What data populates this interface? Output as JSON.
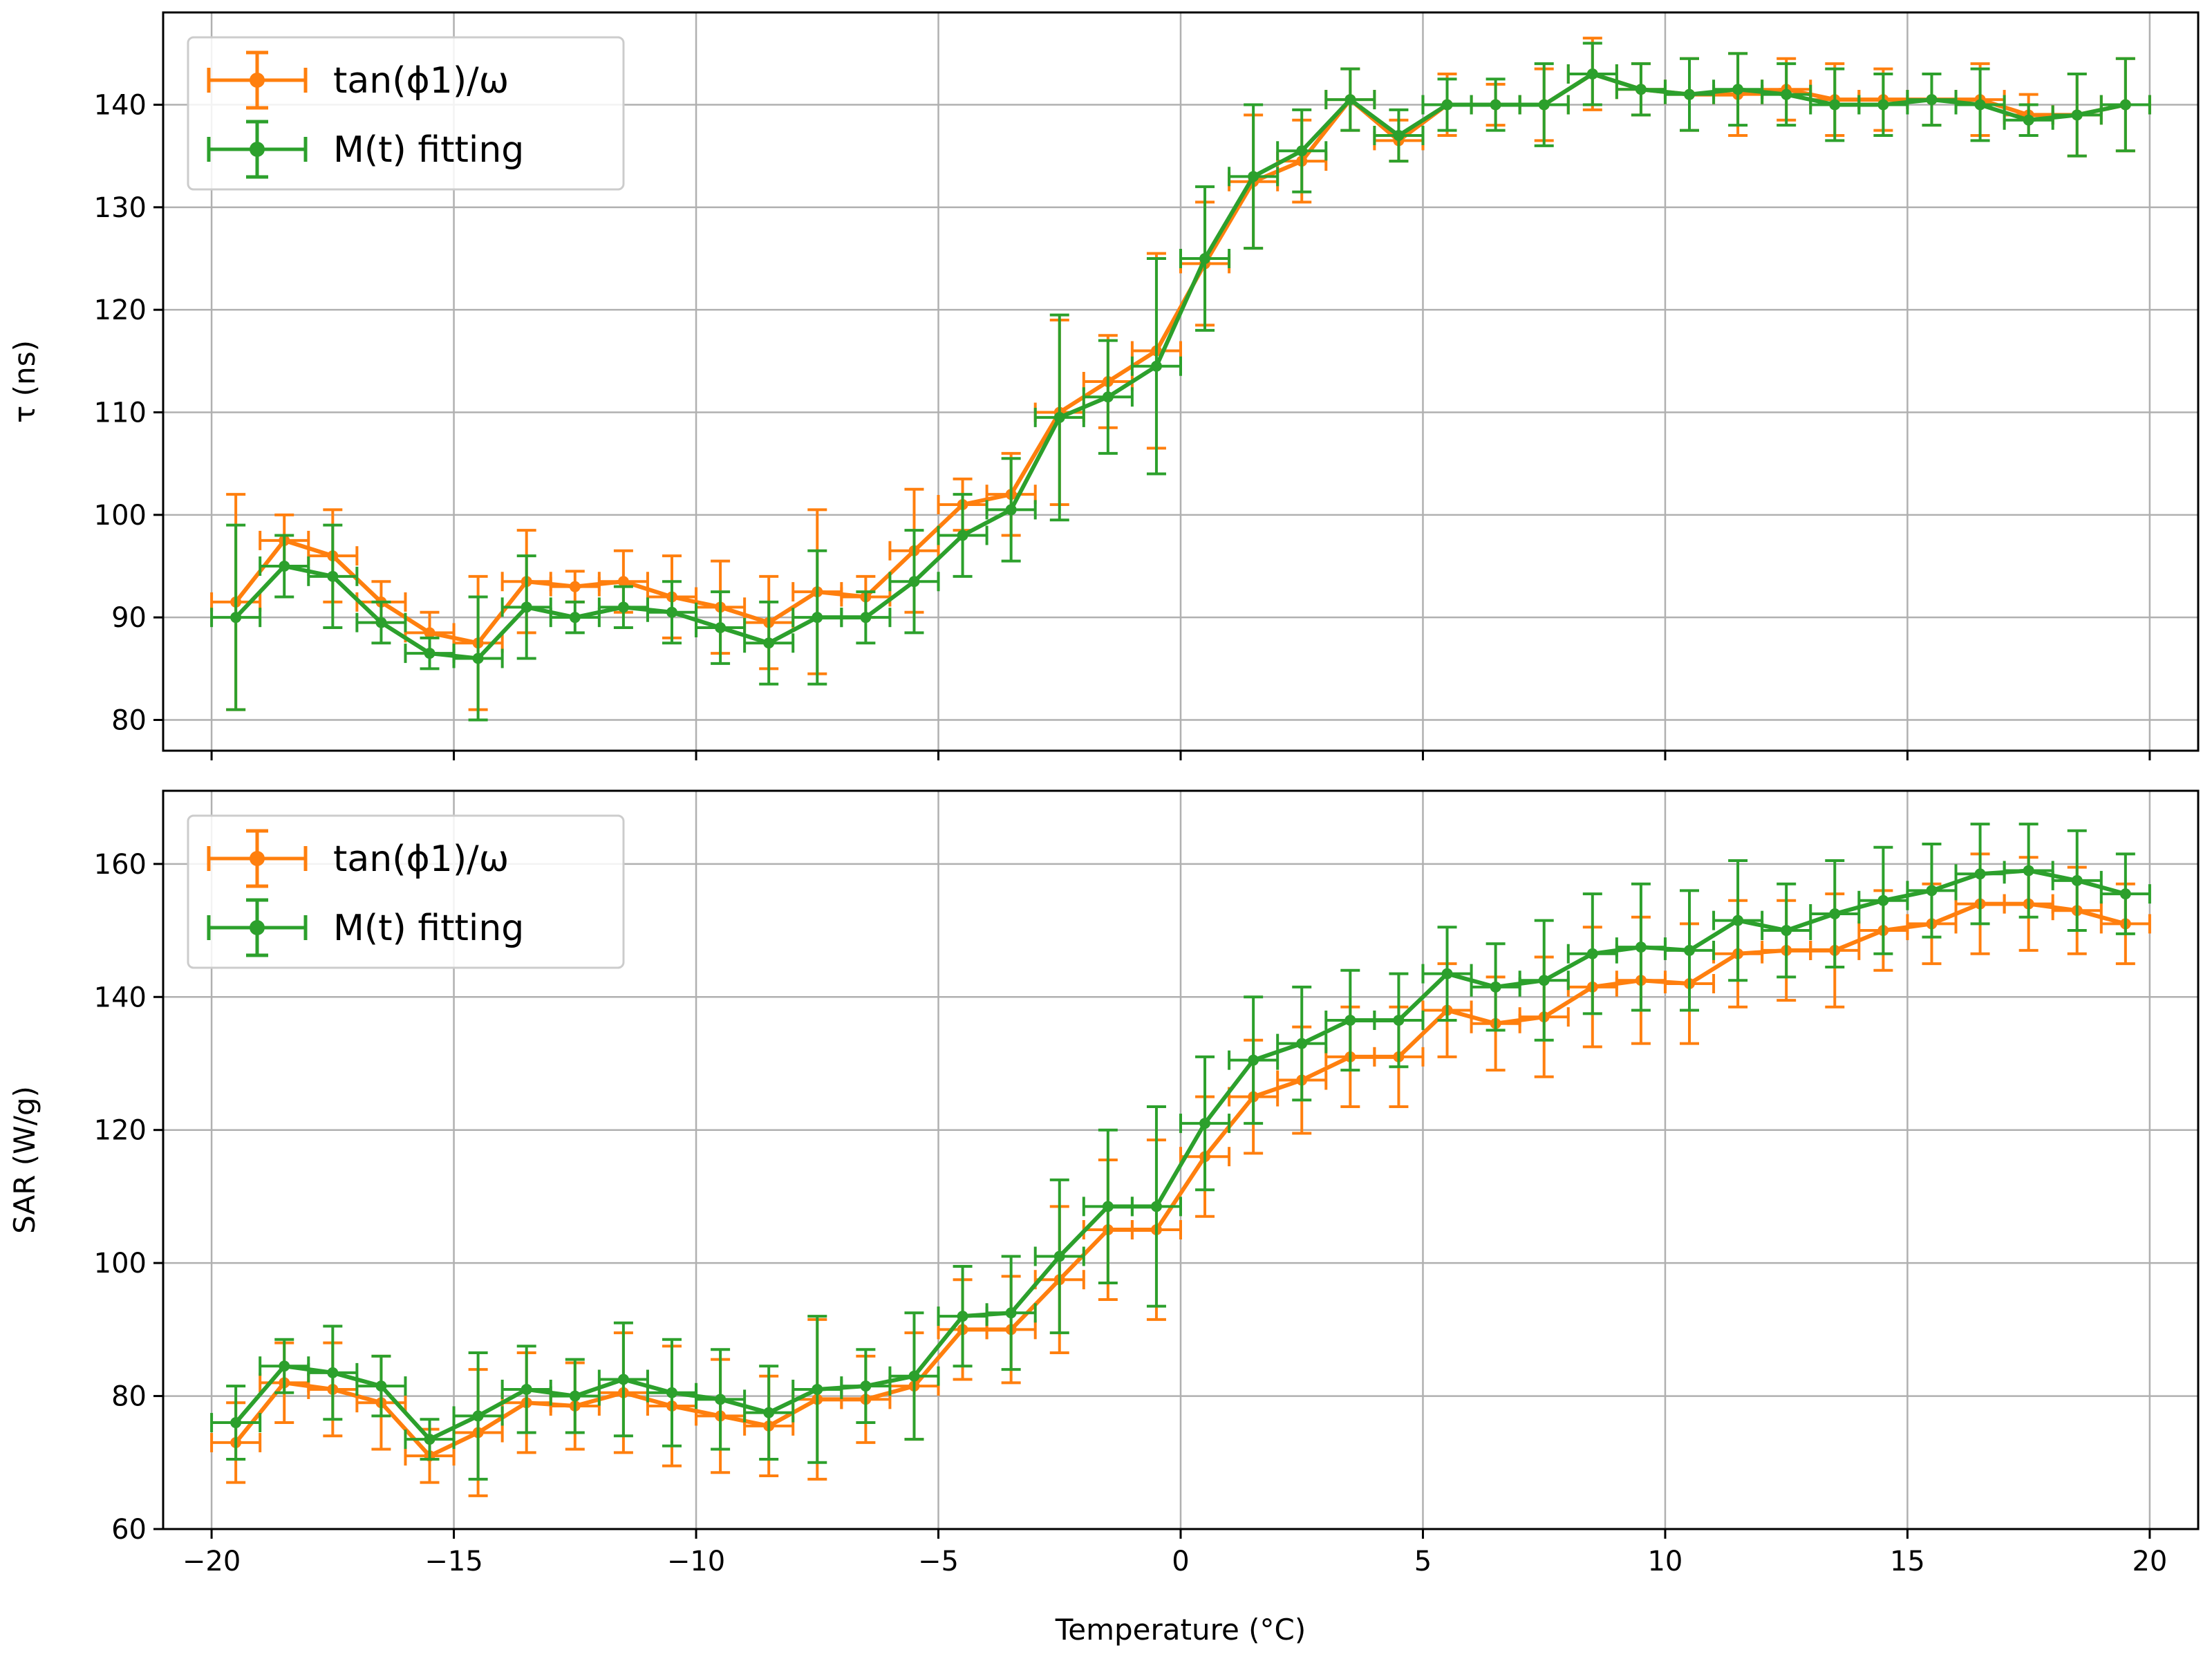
{
  "chart_data": [
    {
      "type": "line",
      "title": "",
      "xlabel": "",
      "ylabel": "τ (ns)",
      "xlim": [
        -21,
        21
      ],
      "ylim": [
        77,
        149
      ],
      "xticks": [
        -20,
        -15,
        -10,
        -5,
        0,
        5,
        10,
        15,
        20
      ],
      "yticks": [
        80,
        90,
        100,
        110,
        120,
        130,
        140
      ],
      "xtick_labels_visible": false,
      "grid": true,
      "legend": "upper-left",
      "x": [
        -19.5,
        -18.5,
        -17.5,
        -16.5,
        -15.5,
        -14.5,
        -13.5,
        -12.5,
        -11.5,
        -10.5,
        -9.5,
        -8.5,
        -7.5,
        -6.5,
        -5.5,
        -4.5,
        -3.5,
        -2.5,
        -1.5,
        -0.5,
        0.5,
        1.5,
        2.5,
        3.5,
        4.5,
        5.5,
        6.5,
        7.5,
        8.5,
        9.5,
        10.5,
        11.5,
        12.5,
        13.5,
        14.5,
        15.5,
        16.5,
        17.5,
        18.5,
        19.5
      ],
      "x_err": 0.5,
      "series": [
        {
          "name": "tan(ϕ1)/ω",
          "color": "#ff7f0e",
          "values": [
            91.5,
            97.5,
            96.0,
            91.5,
            88.5,
            87.5,
            93.5,
            93.0,
            93.5,
            92.0,
            91.0,
            89.5,
            92.5,
            92.0,
            96.5,
            101.0,
            102.0,
            110.0,
            113.0,
            116.0,
            124.5,
            132.5,
            134.5,
            140.5,
            136.5,
            140.0,
            140.0,
            140.0,
            143.0,
            141.5,
            141.0,
            141.0,
            141.5,
            140.5,
            140.5,
            140.5,
            140.5,
            139.0,
            139.0,
            140.0
          ],
          "errors": [
            10.5,
            2.5,
            4.5,
            2.0,
            2.0,
            6.5,
            5.0,
            1.5,
            3.0,
            4.0,
            4.5,
            4.5,
            8.0,
            2.0,
            6.0,
            2.5,
            4.0,
            9.0,
            4.5,
            9.5,
            6.0,
            6.5,
            4.0,
            3.0,
            2.0,
            3.0,
            2.0,
            3.5,
            3.5,
            2.5,
            3.5,
            4.0,
            3.0,
            3.5,
            3.0,
            2.5,
            3.5,
            2.0,
            4.0,
            4.5
          ]
        },
        {
          "name": "M(t) fitting",
          "color": "#2ca02c",
          "values": [
            90.0,
            95.0,
            94.0,
            89.5,
            86.5,
            86.0,
            91.0,
            90.0,
            91.0,
            90.5,
            89.0,
            87.5,
            90.0,
            90.0,
            93.5,
            98.0,
            100.5,
            109.5,
            111.5,
            114.5,
            125.0,
            133.0,
            135.5,
            140.5,
            137.0,
            140.0,
            140.0,
            140.0,
            143.0,
            141.5,
            141.0,
            141.5,
            141.0,
            140.0,
            140.0,
            140.5,
            140.0,
            138.5,
            139.0,
            140.0
          ],
          "errors": [
            9.0,
            3.0,
            5.0,
            2.0,
            1.5,
            6.0,
            5.0,
            1.5,
            2.0,
            3.0,
            3.5,
            4.0,
            6.5,
            2.5,
            5.0,
            4.0,
            5.0,
            10.0,
            5.5,
            10.5,
            7.0,
            7.0,
            4.0,
            3.0,
            2.5,
            2.5,
            2.5,
            4.0,
            3.0,
            2.5,
            3.5,
            3.5,
            3.0,
            3.5,
            3.0,
            2.5,
            3.5,
            1.5,
            4.0,
            4.5
          ]
        }
      ]
    },
    {
      "type": "line",
      "title": "",
      "xlabel": "Temperature (°C)",
      "ylabel": "SAR (W/g)",
      "xlim": [
        -21,
        21
      ],
      "ylim": [
        60,
        171
      ],
      "xticks": [
        -20,
        -15,
        -10,
        -5,
        0,
        5,
        10,
        15,
        20
      ],
      "xtick_labels": [
        "−20",
        "−15",
        "−10",
        "−5",
        "0",
        "5",
        "10",
        "15",
        "20"
      ],
      "yticks": [
        60,
        80,
        100,
        120,
        140,
        160
      ],
      "grid": true,
      "legend": "upper-left",
      "x": [
        -19.5,
        -18.5,
        -17.5,
        -16.5,
        -15.5,
        -14.5,
        -13.5,
        -12.5,
        -11.5,
        -10.5,
        -9.5,
        -8.5,
        -7.5,
        -6.5,
        -5.5,
        -4.5,
        -3.5,
        -2.5,
        -1.5,
        -0.5,
        0.5,
        1.5,
        2.5,
        3.5,
        4.5,
        5.5,
        6.5,
        7.5,
        8.5,
        9.5,
        10.5,
        11.5,
        12.5,
        13.5,
        14.5,
        15.5,
        16.5,
        17.5,
        18.5,
        19.5
      ],
      "x_err": 0.5,
      "series": [
        {
          "name": "tan(ϕ1)/ω",
          "color": "#ff7f0e",
          "values": [
            73.0,
            82.0,
            81.0,
            79.0,
            71.0,
            74.5,
            79.0,
            78.5,
            80.5,
            78.5,
            77.0,
            75.5,
            79.5,
            79.5,
            81.5,
            90.0,
            90.0,
            97.5,
            105.0,
            105.0,
            116.0,
            125.0,
            127.5,
            131.0,
            131.0,
            138.0,
            136.0,
            137.0,
            141.5,
            142.5,
            142.0,
            146.5,
            147.0,
            147.0,
            150.0,
            151.0,
            154.0,
            154.0,
            153.0,
            151.0
          ],
          "errors": [
            6.0,
            6.0,
            7.0,
            7.0,
            4.0,
            9.5,
            7.5,
            6.5,
            9.0,
            9.0,
            8.5,
            7.5,
            12.0,
            6.5,
            8.0,
            7.5,
            8.0,
            11.0,
            10.5,
            13.5,
            9.0,
            8.5,
            8.0,
            7.5,
            7.5,
            7.0,
            7.0,
            9.0,
            9.0,
            9.5,
            9.0,
            8.0,
            7.5,
            8.5,
            6.0,
            6.0,
            7.5,
            7.0,
            6.5,
            6.0
          ]
        },
        {
          "name": "M(t) fitting",
          "color": "#2ca02c",
          "values": [
            76.0,
            84.5,
            83.5,
            81.5,
            73.5,
            77.0,
            81.0,
            80.0,
            82.5,
            80.5,
            79.5,
            77.5,
            81.0,
            81.5,
            83.0,
            92.0,
            92.5,
            101.0,
            108.5,
            108.5,
            121.0,
            130.5,
            133.0,
            136.5,
            136.5,
            143.5,
            141.5,
            142.5,
            146.5,
            147.5,
            147.0,
            151.5,
            150.0,
            152.5,
            154.5,
            156.0,
            158.5,
            159.0,
            157.5,
            155.5
          ],
          "errors": [
            5.5,
            4.0,
            7.0,
            4.5,
            3.0,
            9.5,
            6.5,
            5.5,
            8.5,
            8.0,
            7.5,
            7.0,
            11.0,
            5.5,
            9.5,
            7.5,
            8.5,
            11.5,
            11.5,
            15.0,
            10.0,
            9.5,
            8.5,
            7.5,
            7.0,
            7.0,
            6.5,
            9.0,
            9.0,
            9.5,
            9.0,
            9.0,
            7.0,
            8.0,
            8.0,
            7.0,
            7.5,
            7.0,
            7.5,
            6.0
          ]
        }
      ]
    }
  ]
}
